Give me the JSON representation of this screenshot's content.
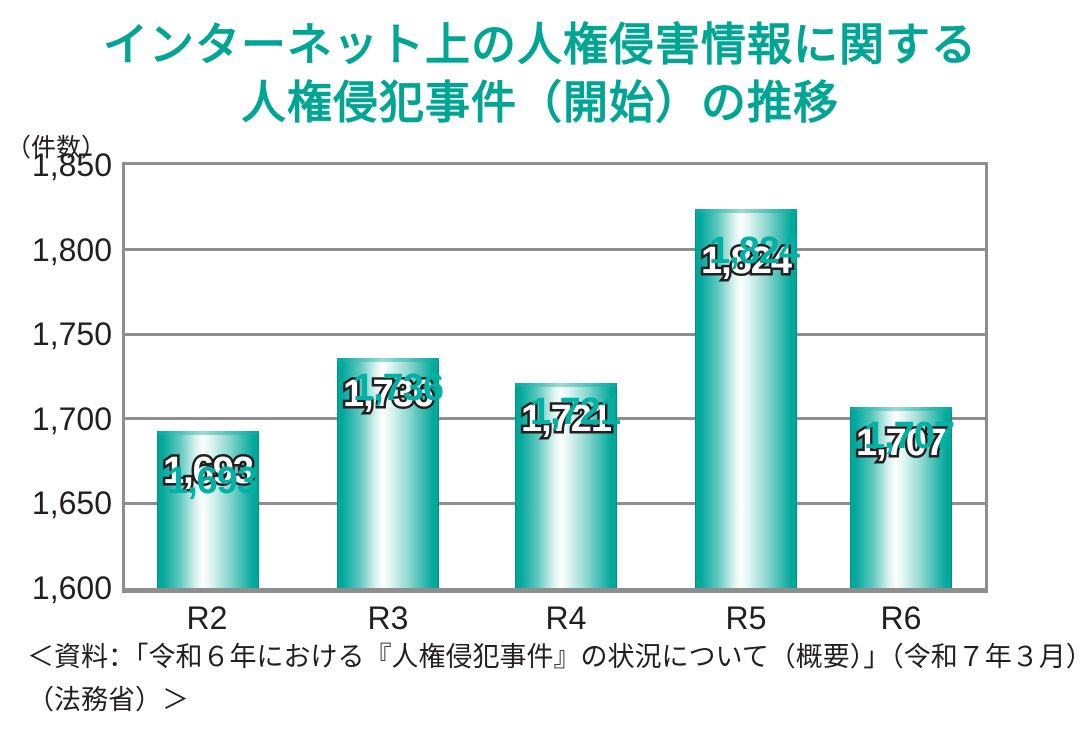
{
  "title": {
    "line1": "インターネット上の人権侵害情報に関する",
    "line2": "人権侵犯事件（開始）の推移"
  },
  "chart_data": {
    "type": "bar",
    "title": "インターネット上の人権侵害情報に関する人権侵犯事件（開始）の推移",
    "unit_label": "（件数）",
    "ylabel": "件数",
    "xlabel": "",
    "categories": [
      "R2",
      "R3",
      "R4",
      "R5",
      "R6"
    ],
    "values": [
      1693,
      1736,
      1721,
      1824,
      1707
    ],
    "value_labels": [
      "1,693",
      "1,736",
      "1,721",
      "1,824",
      "1,707"
    ],
    "ylim": [
      1600,
      1850
    ],
    "ytick_interval": 50,
    "ytick_labels": [
      "1,850",
      "1,800",
      "1,750",
      "1,700",
      "1,650",
      "1,600"
    ],
    "grid": true,
    "legend": "none"
  },
  "source": {
    "line1": "＜資料：「令和６年における『人権侵犯事件』の状況について（概要）」（令和７年３月）",
    "line2": "（法務省）＞"
  },
  "colors": {
    "title_teal": "#00a693",
    "bar_teal": "#00a79b",
    "ghost_teal": "#00b1a4",
    "grid_gray": "#8e8e8e",
    "text_black": "#231f20"
  }
}
